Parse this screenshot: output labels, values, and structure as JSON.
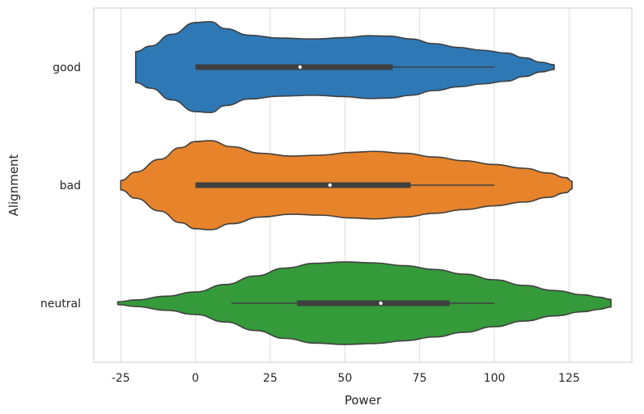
{
  "chart_data": {
    "type": "violin",
    "orientation": "horizontal",
    "xlabel": "Power",
    "ylabel": "Alignment",
    "xlim": [
      -34,
      146
    ],
    "xticks": [
      -25,
      0,
      25,
      50,
      75,
      100,
      125
    ],
    "grid": "vertical",
    "categories": [
      "good",
      "bad",
      "neutral"
    ],
    "series": [
      {
        "category": "good",
        "color": "#2e78b5",
        "profile": [
          [
            -20,
            0.33
          ],
          [
            -15,
            0.45
          ],
          [
            -8,
            0.7
          ],
          [
            0,
            0.95
          ],
          [
            5,
            0.97
          ],
          [
            10,
            0.82
          ],
          [
            18,
            0.68
          ],
          [
            28,
            0.62
          ],
          [
            40,
            0.6
          ],
          [
            50,
            0.63
          ],
          [
            58,
            0.67
          ],
          [
            65,
            0.66
          ],
          [
            72,
            0.6
          ],
          [
            80,
            0.5
          ],
          [
            88,
            0.42
          ],
          [
            96,
            0.36
          ],
          [
            104,
            0.3
          ],
          [
            110,
            0.2
          ],
          [
            116,
            0.1
          ],
          [
            120,
            0.05
          ]
        ],
        "whisker": [
          0,
          100
        ],
        "quartiles": [
          0,
          66
        ],
        "median": 35
      },
      {
        "category": "bad",
        "color": "#e6832b",
        "profile": [
          [
            -25,
            0.1
          ],
          [
            -20,
            0.28
          ],
          [
            -12,
            0.55
          ],
          [
            -5,
            0.8
          ],
          [
            0,
            0.93
          ],
          [
            5,
            0.95
          ],
          [
            12,
            0.82
          ],
          [
            22,
            0.68
          ],
          [
            32,
            0.62
          ],
          [
            42,
            0.64
          ],
          [
            52,
            0.7
          ],
          [
            60,
            0.72
          ],
          [
            70,
            0.68
          ],
          [
            80,
            0.6
          ],
          [
            90,
            0.52
          ],
          [
            100,
            0.44
          ],
          [
            110,
            0.36
          ],
          [
            118,
            0.26
          ],
          [
            124,
            0.16
          ],
          [
            126,
            0.08
          ]
        ],
        "whisker": [
          0,
          100
        ],
        "quartiles": [
          0,
          72
        ],
        "median": 45
      },
      {
        "category": "neutral",
        "color": "#359a3a",
        "profile": [
          [
            -26,
            0.03
          ],
          [
            -20,
            0.07
          ],
          [
            -10,
            0.15
          ],
          [
            0,
            0.24
          ],
          [
            10,
            0.4
          ],
          [
            20,
            0.58
          ],
          [
            30,
            0.75
          ],
          [
            40,
            0.85
          ],
          [
            50,
            0.88
          ],
          [
            60,
            0.86
          ],
          [
            70,
            0.8
          ],
          [
            80,
            0.72
          ],
          [
            90,
            0.62
          ],
          [
            100,
            0.5
          ],
          [
            110,
            0.38
          ],
          [
            120,
            0.27
          ],
          [
            130,
            0.18
          ],
          [
            135,
            0.13
          ],
          [
            139,
            0.08
          ]
        ],
        "whisker": [
          12,
          100
        ],
        "quartiles": [
          34,
          85
        ],
        "median": 62
      }
    ]
  }
}
